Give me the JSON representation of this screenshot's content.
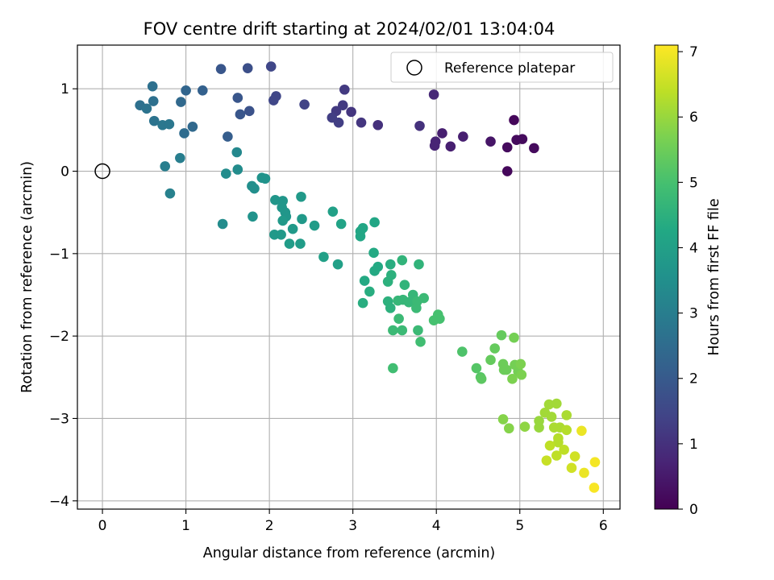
{
  "chart_data": {
    "type": "scatter",
    "title": "FOV centre drift starting at 2024/02/01 13:04:04",
    "xlabel": "Angular distance from reference (arcmin)",
    "ylabel": "Rotation from reference (arcmin)",
    "xlim": [
      -0.3,
      6.2
    ],
    "ylim": [
      -4.1,
      1.53
    ],
    "xticks": [
      0,
      1,
      2,
      3,
      4,
      5,
      6
    ],
    "yticks": [
      1,
      0,
      -1,
      -2,
      -3,
      -4
    ],
    "grid": true,
    "legend": {
      "placement": "top-right",
      "entries": [
        "Reference platepar"
      ]
    },
    "reference_point": {
      "name": "Reference platepar",
      "x": 0,
      "y": 0
    },
    "colorbar": {
      "label": "Hours from first FF file",
      "colormap": "viridis",
      "range": [
        0,
        7.1
      ],
      "ticks": [
        0,
        1,
        2,
        3,
        4,
        5,
        6,
        7
      ]
    },
    "points": [
      {
        "x": 4.85,
        "y": 0.0,
        "c": 0.15
      },
      {
        "x": 4.93,
        "y": 0.62,
        "c": 0.12
      },
      {
        "x": 4.85,
        "y": 0.29,
        "c": 0.2
      },
      {
        "x": 4.96,
        "y": 0.38,
        "c": 0.2
      },
      {
        "x": 5.03,
        "y": 0.39,
        "c": 0.2
      },
      {
        "x": 5.17,
        "y": 0.28,
        "c": 0.2
      },
      {
        "x": 4.65,
        "y": 0.36,
        "c": 0.4
      },
      {
        "x": 4.32,
        "y": 0.42,
        "c": 0.6
      },
      {
        "x": 4.17,
        "y": 0.3,
        "c": 0.6
      },
      {
        "x": 4.07,
        "y": 0.46,
        "c": 0.6
      },
      {
        "x": 3.99,
        "y": 0.36,
        "c": 0.7
      },
      {
        "x": 3.98,
        "y": 0.31,
        "c": 0.7
      },
      {
        "x": 3.97,
        "y": 0.93,
        "c": 0.8
      },
      {
        "x": 3.8,
        "y": 0.55,
        "c": 1.0
      },
      {
        "x": 3.3,
        "y": 0.56,
        "c": 1.0
      },
      {
        "x": 3.1,
        "y": 0.59,
        "c": 1.1
      },
      {
        "x": 2.98,
        "y": 0.72,
        "c": 1.1
      },
      {
        "x": 2.9,
        "y": 0.99,
        "c": 1.2
      },
      {
        "x": 2.88,
        "y": 0.8,
        "c": 1.2
      },
      {
        "x": 2.8,
        "y": 0.73,
        "c": 1.2
      },
      {
        "x": 2.75,
        "y": 0.65,
        "c": 1.3
      },
      {
        "x": 2.83,
        "y": 0.59,
        "c": 1.3
      },
      {
        "x": 2.42,
        "y": 0.81,
        "c": 1.4
      },
      {
        "x": 2.08,
        "y": 0.91,
        "c": 1.5
      },
      {
        "x": 2.05,
        "y": 0.86,
        "c": 1.5
      },
      {
        "x": 2.02,
        "y": 1.27,
        "c": 1.5
      },
      {
        "x": 1.74,
        "y": 1.25,
        "c": 1.7
      },
      {
        "x": 1.42,
        "y": 1.24,
        "c": 1.9
      },
      {
        "x": 1.76,
        "y": 0.73,
        "c": 1.8
      },
      {
        "x": 1.62,
        "y": 0.89,
        "c": 1.9
      },
      {
        "x": 1.65,
        "y": 0.69,
        "c": 1.9
      },
      {
        "x": 1.5,
        "y": 0.42,
        "c": 2.1
      },
      {
        "x": 1.2,
        "y": 0.98,
        "c": 2.2
      },
      {
        "x": 1.0,
        "y": 0.98,
        "c": 2.3
      },
      {
        "x": 0.94,
        "y": 0.84,
        "c": 2.4
      },
      {
        "x": 1.08,
        "y": 0.54,
        "c": 2.4
      },
      {
        "x": 0.98,
        "y": 0.46,
        "c": 2.5
      },
      {
        "x": 0.6,
        "y": 1.03,
        "c": 2.6
      },
      {
        "x": 0.61,
        "y": 0.85,
        "c": 2.6
      },
      {
        "x": 0.45,
        "y": 0.8,
        "c": 2.6
      },
      {
        "x": 0.53,
        "y": 0.76,
        "c": 2.7
      },
      {
        "x": 0.62,
        "y": 0.61,
        "c": 2.7
      },
      {
        "x": 0.72,
        "y": 0.56,
        "c": 2.8
      },
      {
        "x": 0.8,
        "y": 0.57,
        "c": 2.8
      },
      {
        "x": 0.93,
        "y": 0.16,
        "c": 3.0
      },
      {
        "x": 0.75,
        "y": 0.06,
        "c": 3.0
      },
      {
        "x": 0.81,
        "y": -0.27,
        "c": 3.1
      },
      {
        "x": 1.61,
        "y": 0.23,
        "c": 3.3
      },
      {
        "x": 1.62,
        "y": 0.02,
        "c": 3.4
      },
      {
        "x": 1.48,
        "y": -0.03,
        "c": 3.4
      },
      {
        "x": 1.44,
        "y": -0.64,
        "c": 3.4
      },
      {
        "x": 1.79,
        "y": -0.18,
        "c": 3.5
      },
      {
        "x": 1.82,
        "y": -0.21,
        "c": 3.5
      },
      {
        "x": 1.91,
        "y": -0.08,
        "c": 3.6
      },
      {
        "x": 1.95,
        "y": -0.09,
        "c": 3.6
      },
      {
        "x": 1.8,
        "y": -0.55,
        "c": 3.6
      },
      {
        "x": 2.07,
        "y": -0.35,
        "c": 3.7
      },
      {
        "x": 2.16,
        "y": -0.36,
        "c": 3.7
      },
      {
        "x": 2.15,
        "y": -0.44,
        "c": 3.7
      },
      {
        "x": 2.19,
        "y": -0.5,
        "c": 3.7
      },
      {
        "x": 2.2,
        "y": -0.55,
        "c": 3.7
      },
      {
        "x": 2.16,
        "y": -0.6,
        "c": 3.8
      },
      {
        "x": 2.38,
        "y": -0.31,
        "c": 3.8
      },
      {
        "x": 2.39,
        "y": -0.58,
        "c": 3.8
      },
      {
        "x": 2.28,
        "y": -0.7,
        "c": 3.8
      },
      {
        "x": 2.06,
        "y": -0.77,
        "c": 3.8
      },
      {
        "x": 2.14,
        "y": -0.77,
        "c": 3.8
      },
      {
        "x": 2.24,
        "y": -0.88,
        "c": 3.9
      },
      {
        "x": 2.37,
        "y": -0.88,
        "c": 3.9
      },
      {
        "x": 2.54,
        "y": -0.66,
        "c": 3.9
      },
      {
        "x": 2.65,
        "y": -1.04,
        "c": 4.0
      },
      {
        "x": 2.76,
        "y": -0.49,
        "c": 4.0
      },
      {
        "x": 2.82,
        "y": -1.13,
        "c": 4.0
      },
      {
        "x": 2.86,
        "y": -0.64,
        "c": 4.1
      },
      {
        "x": 3.09,
        "y": -0.73,
        "c": 4.2
      },
      {
        "x": 3.09,
        "y": -0.79,
        "c": 4.2
      },
      {
        "x": 3.12,
        "y": -0.69,
        "c": 4.2
      },
      {
        "x": 3.26,
        "y": -0.62,
        "c": 4.2
      },
      {
        "x": 3.25,
        "y": -0.99,
        "c": 4.3
      },
      {
        "x": 3.26,
        "y": -1.21,
        "c": 4.3
      },
      {
        "x": 3.3,
        "y": -1.16,
        "c": 4.3
      },
      {
        "x": 3.14,
        "y": -1.33,
        "c": 4.3
      },
      {
        "x": 3.2,
        "y": -1.46,
        "c": 4.4
      },
      {
        "x": 3.12,
        "y": -1.6,
        "c": 4.4
      },
      {
        "x": 3.45,
        "y": -1.13,
        "c": 4.4
      },
      {
        "x": 3.42,
        "y": -1.34,
        "c": 4.5
      },
      {
        "x": 3.46,
        "y": -1.26,
        "c": 4.5
      },
      {
        "x": 3.42,
        "y": -1.58,
        "c": 4.5
      },
      {
        "x": 3.45,
        "y": -1.66,
        "c": 4.5
      },
      {
        "x": 3.59,
        "y": -1.08,
        "c": 4.6
      },
      {
        "x": 3.79,
        "y": -1.13,
        "c": 4.6
      },
      {
        "x": 3.62,
        "y": -1.38,
        "c": 4.6
      },
      {
        "x": 3.54,
        "y": -1.57,
        "c": 4.7
      },
      {
        "x": 3.6,
        "y": -1.56,
        "c": 4.7
      },
      {
        "x": 3.67,
        "y": -1.59,
        "c": 4.7
      },
      {
        "x": 3.72,
        "y": -1.5,
        "c": 4.7
      },
      {
        "x": 3.77,
        "y": -1.58,
        "c": 4.8
      },
      {
        "x": 3.76,
        "y": -1.66,
        "c": 4.8
      },
      {
        "x": 3.85,
        "y": -1.54,
        "c": 4.8
      },
      {
        "x": 3.55,
        "y": -1.79,
        "c": 4.8
      },
      {
        "x": 3.48,
        "y": -1.93,
        "c": 4.8
      },
      {
        "x": 3.59,
        "y": -1.93,
        "c": 4.8
      },
      {
        "x": 3.78,
        "y": -1.93,
        "c": 4.8
      },
      {
        "x": 3.81,
        "y": -2.07,
        "c": 4.9
      },
      {
        "x": 3.48,
        "y": -2.39,
        "c": 4.9
      },
      {
        "x": 3.97,
        "y": -1.81,
        "c": 5.0
      },
      {
        "x": 4.02,
        "y": -1.74,
        "c": 5.0
      },
      {
        "x": 4.04,
        "y": -1.79,
        "c": 5.0
      },
      {
        "x": 4.31,
        "y": -2.19,
        "c": 5.1
      },
      {
        "x": 4.48,
        "y": -2.39,
        "c": 5.2
      },
      {
        "x": 4.53,
        "y": -2.5,
        "c": 5.2
      },
      {
        "x": 4.54,
        "y": -2.52,
        "c": 5.3
      },
      {
        "x": 4.65,
        "y": -2.29,
        "c": 5.4
      },
      {
        "x": 4.7,
        "y": -2.15,
        "c": 5.4
      },
      {
        "x": 4.78,
        "y": -1.99,
        "c": 5.4
      },
      {
        "x": 4.8,
        "y": -2.34,
        "c": 5.5
      },
      {
        "x": 4.81,
        "y": -2.41,
        "c": 5.5
      },
      {
        "x": 4.84,
        "y": -2.41,
        "c": 5.5
      },
      {
        "x": 4.93,
        "y": -2.02,
        "c": 5.6
      },
      {
        "x": 4.94,
        "y": -2.35,
        "c": 5.6
      },
      {
        "x": 4.98,
        "y": -2.43,
        "c": 5.6
      },
      {
        "x": 5.01,
        "y": -2.34,
        "c": 5.7
      },
      {
        "x": 5.02,
        "y": -2.47,
        "c": 5.7
      },
      {
        "x": 4.91,
        "y": -2.52,
        "c": 5.7
      },
      {
        "x": 4.8,
        "y": -3.01,
        "c": 5.8
      },
      {
        "x": 4.87,
        "y": -3.12,
        "c": 5.8
      },
      {
        "x": 5.06,
        "y": -3.1,
        "c": 5.9
      },
      {
        "x": 5.23,
        "y": -3.11,
        "c": 6.0
      },
      {
        "x": 5.23,
        "y": -3.03,
        "c": 6.0
      },
      {
        "x": 5.3,
        "y": -2.93,
        "c": 6.1
      },
      {
        "x": 5.35,
        "y": -2.83,
        "c": 6.1
      },
      {
        "x": 5.44,
        "y": -2.82,
        "c": 6.1
      },
      {
        "x": 5.38,
        "y": -2.98,
        "c": 6.1
      },
      {
        "x": 5.41,
        "y": -3.11,
        "c": 6.2
      },
      {
        "x": 5.48,
        "y": -3.11,
        "c": 6.2
      },
      {
        "x": 5.56,
        "y": -2.96,
        "c": 6.2
      },
      {
        "x": 5.46,
        "y": -3.24,
        "c": 6.3
      },
      {
        "x": 5.56,
        "y": -3.14,
        "c": 6.3
      },
      {
        "x": 5.46,
        "y": -3.29,
        "c": 6.3
      },
      {
        "x": 5.36,
        "y": -3.33,
        "c": 6.4
      },
      {
        "x": 5.53,
        "y": -3.38,
        "c": 6.4
      },
      {
        "x": 5.44,
        "y": -3.45,
        "c": 6.4
      },
      {
        "x": 5.32,
        "y": -3.51,
        "c": 6.5
      },
      {
        "x": 5.66,
        "y": -3.46,
        "c": 6.6
      },
      {
        "x": 5.62,
        "y": -3.6,
        "c": 6.6
      },
      {
        "x": 5.74,
        "y": -3.15,
        "c": 6.9
      },
      {
        "x": 5.77,
        "y": -3.66,
        "c": 6.9
      },
      {
        "x": 5.9,
        "y": -3.53,
        "c": 7.0
      },
      {
        "x": 5.89,
        "y": -3.84,
        "c": 7.05
      }
    ]
  }
}
